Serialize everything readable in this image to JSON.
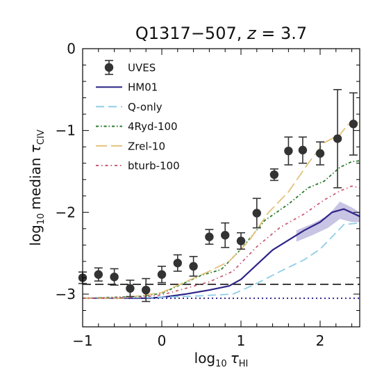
{
  "chart_data": {
    "type": "line",
    "title": "Q1317−507, z = 3.7",
    "title_parts": {
      "main": "Q1317−507, ",
      "italic": "z",
      "suffix": " = 3.7"
    },
    "xlabel": {
      "prefix": "log",
      "sub": "10",
      "var": "τ",
      "var_sub": "HI"
    },
    "ylabel": {
      "prefix": "log",
      "sub": "10",
      "mid": "median",
      "var": "τ",
      "var_sub": "CIV"
    },
    "xlim": [
      -1.0,
      2.5
    ],
    "ylim": [
      -3.4,
      0.0
    ],
    "xticks": [
      -1,
      0,
      1,
      2
    ],
    "xtick_labels": [
      "−1",
      "0",
      "1",
      "2"
    ],
    "yticks": [
      -3,
      -2,
      -1,
      0
    ],
    "ytick_labels": [
      "−3",
      "−2",
      "−1",
      "0"
    ],
    "legend_placement": "top-left",
    "grid": false,
    "band": {
      "series": "HM01",
      "x": [
        1.7,
        1.9,
        2.1,
        2.25,
        2.4,
        2.5
      ],
      "lower": [
        -2.36,
        -2.28,
        -2.19,
        -2.08,
        -2.12,
        -2.12
      ],
      "upper": [
        -2.22,
        -2.14,
        -2.04,
        -1.87,
        -1.94,
        -2.0
      ],
      "color": "#b5b0d9"
    },
    "series": [
      {
        "name": "UVES",
        "style": "points",
        "color": "#333333",
        "x": [
          -1.0,
          -0.8,
          -0.6,
          -0.4,
          -0.2,
          0.0,
          0.2,
          0.4,
          0.6,
          0.8,
          1.0,
          1.2,
          1.42,
          1.6,
          1.78,
          2.0,
          2.22,
          2.42
        ],
        "y": [
          -2.8,
          -2.76,
          -2.79,
          -2.93,
          -2.95,
          -2.76,
          -2.62,
          -2.66,
          -2.3,
          -2.28,
          -2.35,
          -2.01,
          -1.54,
          -1.25,
          -1.24,
          -1.28,
          -1.1,
          -0.92
        ],
        "yerr": [
          0.07,
          0.08,
          0.1,
          0.1,
          0.14,
          0.1,
          0.1,
          0.12,
          0.09,
          0.15,
          0.1,
          0.18,
          0.07,
          0.17,
          0.16,
          0.14,
          0.6,
          0.38
        ]
      },
      {
        "name": "HM01",
        "style": "solid",
        "color": "#2c2488",
        "x": [
          -1.0,
          -0.6,
          -0.2,
          0.0,
          0.3,
          0.6,
          0.85,
          1.0,
          1.2,
          1.4,
          1.6,
          1.8,
          2.0,
          2.15,
          2.3,
          2.5
        ],
        "y": [
          -3.05,
          -3.05,
          -3.05,
          -3.04,
          -3.0,
          -2.95,
          -2.9,
          -2.82,
          -2.64,
          -2.46,
          -2.34,
          -2.22,
          -2.12,
          -2.0,
          -1.96,
          -2.05
        ]
      },
      {
        "name": "Q-only",
        "style": "dashed",
        "color": "#8ecde8",
        "x": [
          -1.0,
          0.0,
          0.5,
          0.9,
          1.2,
          1.5,
          1.8,
          2.0,
          2.15,
          2.3,
          2.5
        ],
        "y": [
          -3.05,
          -3.04,
          -3.02,
          -3.0,
          -2.87,
          -2.72,
          -2.58,
          -2.45,
          -2.3,
          -2.15,
          -2.13
        ]
      },
      {
        "name": "4Ryd-100",
        "style": "dashdot-dense",
        "color": "#2a7a2a",
        "x": [
          -1.0,
          -0.3,
          0.0,
          0.25,
          0.5,
          0.75,
          1.0,
          1.3,
          1.6,
          1.85,
          2.05,
          2.25,
          2.4,
          2.5
        ],
        "y": [
          -3.05,
          -3.03,
          -2.99,
          -2.88,
          -2.77,
          -2.7,
          -2.45,
          -2.1,
          -1.9,
          -1.7,
          -1.62,
          -1.45,
          -1.38,
          -1.37
        ]
      },
      {
        "name": "Zrel-10",
        "style": "longdash",
        "color": "#e3c27a",
        "x": [
          -1.0,
          -0.5,
          0.0,
          0.3,
          0.6,
          0.85,
          1.1,
          1.35,
          1.6,
          1.85,
          2.05,
          2.25,
          2.35,
          2.5
        ],
        "y": [
          -3.05,
          -3.05,
          -2.98,
          -2.85,
          -2.72,
          -2.6,
          -2.35,
          -2.0,
          -1.75,
          -1.4,
          -1.15,
          -1.05,
          -0.93,
          -0.9
        ]
      },
      {
        "name": "bturb-100",
        "style": "dashdot-sparse",
        "color": "#c95a74",
        "x": [
          -1.0,
          -0.3,
          0.0,
          0.3,
          0.6,
          0.9,
          1.2,
          1.5,
          1.8,
          2.05,
          2.25,
          2.4,
          2.5
        ],
        "y": [
          -3.05,
          -3.04,
          -3.01,
          -2.93,
          -2.85,
          -2.72,
          -2.42,
          -2.18,
          -2.02,
          -1.85,
          -1.74,
          -1.68,
          -1.7
        ]
      }
    ],
    "reference_lines": [
      {
        "y": -2.88,
        "style": "dashed",
        "color": "#111111"
      },
      {
        "y": -3.05,
        "style": "dotted",
        "color": "#2c2488"
      }
    ]
  }
}
